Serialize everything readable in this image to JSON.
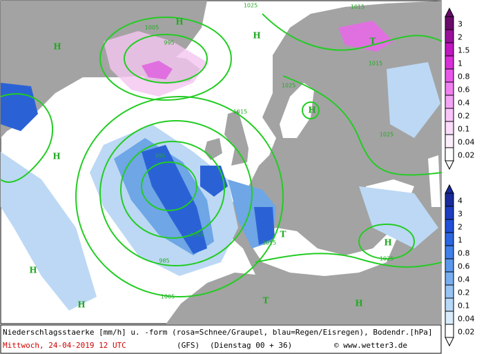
{
  "footer": {
    "description": "Niederschlagsstaerke [mm/h] u. -form (rosa=Schnee/Graupel, blau=Regen/Eisregen), Bodendr.[hPa]",
    "date": "Mittwoch, 24-04-2019  12 UTC",
    "model": "(GFS)",
    "run": "(Dienstag 00 + 36)",
    "credit": "© www.wetter3.de"
  },
  "legend_snow": {
    "labels": [
      "3",
      "2",
      "1.5",
      "1",
      "0.8",
      "0.6",
      "0.4",
      "0.2",
      "0.1",
      "0.04",
      "0.02"
    ]
  },
  "legend_rain": {
    "labels": [
      "4",
      "3",
      "2",
      "1",
      "0.8",
      "0.6",
      "0.4",
      "0.2",
      "0.1",
      "0.04",
      "0.02"
    ]
  },
  "isobar_labels": [
    "1005",
    "995",
    "1025",
    "1015",
    "1015",
    "1025",
    "995",
    "1005",
    "1015",
    "1025",
    "1015",
    "1025",
    "985",
    "1005"
  ],
  "pressure_centers": [
    "H",
    "H",
    "H",
    "H",
    "H",
    "H",
    "H",
    "T",
    "T",
    "H",
    "T",
    "H"
  ]
}
